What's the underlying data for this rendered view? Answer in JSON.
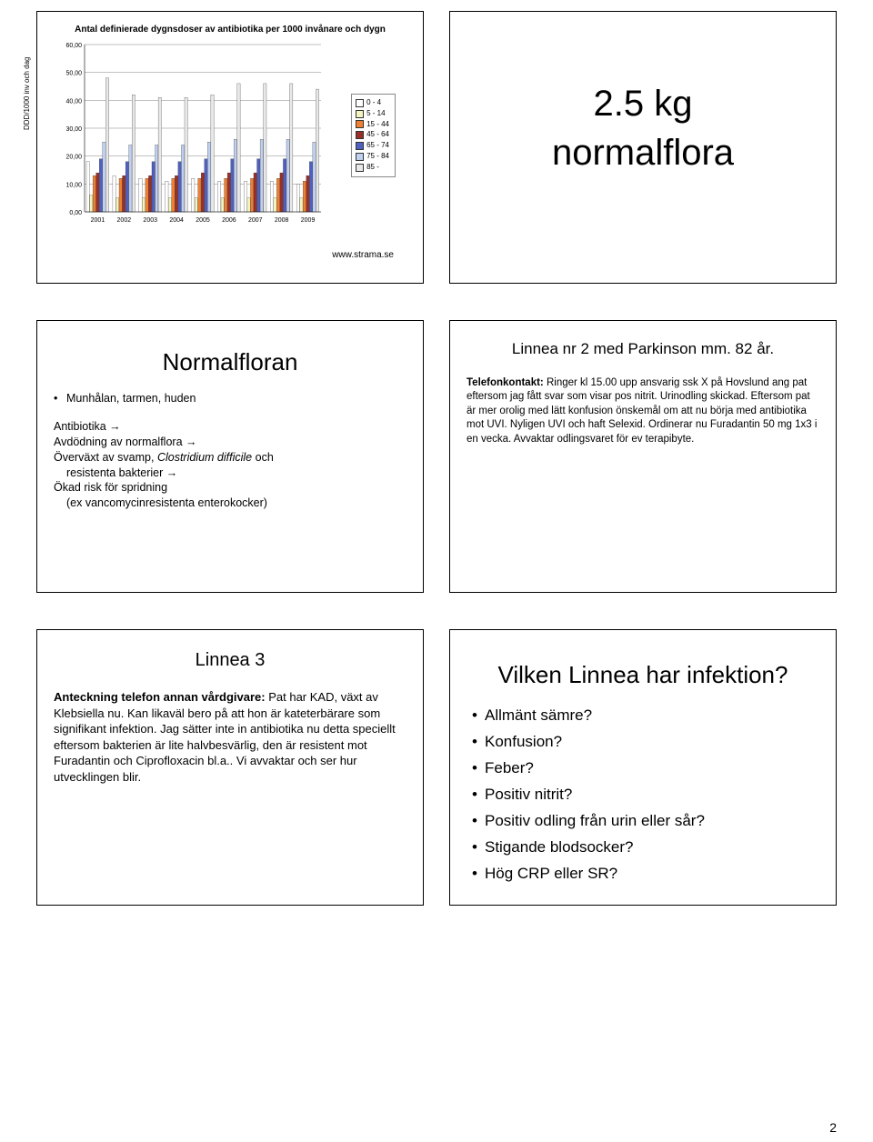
{
  "page_number": "2",
  "slides": {
    "chart": {
      "title": "Antal definierade dygnsdoser av antibiotika per 1000 invånare och dygn",
      "type": "bar-grouped",
      "ylabel": "DDD/1000 inv och dag",
      "yticks": [
        "0,00",
        "10,00",
        "20,00",
        "30,00",
        "40,00",
        "50,00",
        "60,00"
      ],
      "ylim": [
        0,
        60
      ],
      "years": [
        "2001",
        "2002",
        "2003",
        "2004",
        "2005",
        "2006",
        "2007",
        "2008",
        "2009"
      ],
      "series_colors": [
        "#ffffff",
        "#f4f4c0",
        "#f08030",
        "#983028",
        "#5060c0",
        "#c0d0f0",
        "#e8e8e8"
      ],
      "series_outline": "#333333",
      "legend": [
        "0 - 4",
        "5 - 14",
        "15 - 44",
        "45 - 64",
        "65 - 74",
        "75 - 84",
        "85 -"
      ],
      "data": [
        [
          18,
          13,
          12,
          11,
          12,
          11,
          11,
          11,
          10
        ],
        [
          6,
          5,
          5,
          5,
          5,
          5,
          5,
          5,
          5
        ],
        [
          13,
          12,
          12,
          12,
          12,
          12,
          12,
          12,
          11
        ],
        [
          14,
          13,
          13,
          13,
          14,
          14,
          14,
          14,
          13
        ],
        [
          19,
          18,
          18,
          18,
          19,
          19,
          19,
          19,
          18
        ],
        [
          25,
          24,
          24,
          24,
          25,
          26,
          26,
          26,
          25
        ],
        [
          48,
          42,
          41,
          41,
          42,
          46,
          46,
          46,
          44
        ]
      ],
      "grid_color": "#666666",
      "background_color": "#ffffff",
      "source_label": "www.strama.se"
    },
    "big": {
      "text_l1": "2.5 kg",
      "text_l2": "normalflora"
    },
    "normalfloran": {
      "title": "Normalfloran",
      "bullet1": "Munhålan, tarmen, huden",
      "line1": "Antibiotika →",
      "line2": "Avdödning av normalflora →",
      "line3a": "Överväxt av svamp, ",
      "line3b_italic": "Clostridium difficile",
      "line3c": " och",
      "line4": "resistenta bakterier →",
      "line5": "Ökad risk för spridning",
      "line6": "(ex vancomycinresistenta enterokocker)"
    },
    "linnea2": {
      "title": "Linnea nr 2 med Parkinson mm. 82 år.",
      "lead_bold": "Telefonkontakt:",
      "body": " Ringer kl 15.00 upp ansvarig ssk X på Hovslund ang pat eftersom jag fått svar som visar pos nitrit. Urinodling skickad. Eftersom pat är mer orolig med lätt konfusion önskemål om att nu börja med antibiotika mot UVI. Nyligen UVI och haft Selexid. Ordinerar nu Furadantin 50 mg 1x3 i en vecka. Avvaktar odlingsvaret för ev terapibyte."
    },
    "linnea3": {
      "title": "Linnea 3",
      "lead_bold": "Anteckning telefon annan vårdgivare:",
      "body": " Pat har KAD, växt av Klebsiella nu. Kan likaväl bero på att hon är kateterbärare som signifikant infektion. Jag sätter inte in antibiotika nu detta speciellt eftersom bakterien är lite halvbesvärlig, den är resistent mot Furadantin och Ciprofloxacin bl.a.. Vi avvaktar och ser hur utvecklingen blir."
    },
    "vilken": {
      "title": "Vilken Linnea har infektion?",
      "items": [
        "Allmänt sämre?",
        "Konfusion?",
        "Feber?",
        "Positiv nitrit?",
        "Positiv odling från urin eller sår?",
        "Stigande blodsocker?",
        "Hög CRP eller SR?"
      ]
    }
  }
}
